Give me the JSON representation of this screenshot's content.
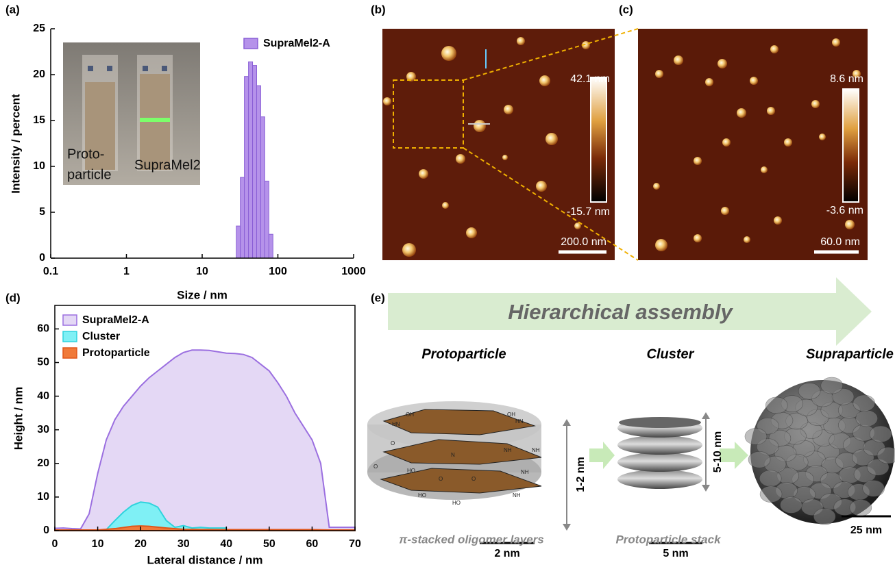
{
  "panel_labels": [
    "(a)",
    "(b)",
    "(c)",
    "(d)",
    "(e)"
  ],
  "chart_data": [
    {
      "type": "histogram",
      "x_label": "Size / nm",
      "y_label": "Intensity / percent",
      "log_x": true,
      "xlim": [
        0.1,
        1000
      ],
      "xticks": [
        0.1,
        1,
        10,
        100,
        1000
      ],
      "ylim": [
        0,
        25
      ],
      "yticks": [
        0,
        5,
        10,
        15,
        20,
        25
      ],
      "legend": "upper right",
      "series": [
        {
          "name": "SupraMel2-A",
          "color": "#b592ea",
          "edge": "#8a5fd6",
          "bins": [
            28.2,
            31.9,
            36.1,
            40.9,
            46.3,
            52.4,
            59.3,
            67.1,
            76.0,
            86.0
          ],
          "values": [
            3.5,
            8.8,
            19.8,
            21.4,
            21.0,
            18.8,
            15.4,
            8.4,
            2.6
          ]
        }
      ]
    },
    {
      "type": "area",
      "x_label": "Lateral distance / nm",
      "y_label": "Height / nm",
      "xlim": [
        0,
        70
      ],
      "xticks": [
        0,
        10,
        20,
        30,
        40,
        50,
        60,
        70
      ],
      "ylim": [
        0,
        67
      ],
      "yticks": [
        0,
        10,
        20,
        30,
        40,
        50,
        60
      ],
      "legend": "upper left",
      "series": [
        {
          "name": "SupraMel2-A",
          "color": "#e4d8f5",
          "edge": "#9b6fe0",
          "x": [
            0,
            2,
            4,
            6,
            8,
            10,
            12,
            14,
            16,
            18,
            20,
            22,
            24,
            26,
            28,
            30,
            32,
            34,
            36,
            38,
            40,
            42,
            44,
            46,
            48,
            50,
            52,
            54,
            56,
            58,
            60,
            62,
            64,
            66,
            68,
            70
          ],
          "values": [
            0.7,
            0.8,
            0.6,
            0.5,
            5,
            17,
            27,
            33,
            37,
            40,
            43,
            45.5,
            47.5,
            49.5,
            51.5,
            53,
            53.7,
            53.7,
            53.6,
            53.2,
            52.8,
            52.7,
            52.4,
            51.5,
            49.5,
            47.5,
            44,
            40,
            35,
            31,
            27,
            20,
            1,
            1,
            1,
            1
          ]
        },
        {
          "name": "Cluster",
          "color": "#7ff0f5",
          "edge": "#2fd3dd",
          "x": [
            12,
            14,
            16,
            18,
            20,
            22,
            24,
            26,
            28,
            30,
            32,
            34,
            36,
            38,
            40
          ],
          "values": [
            0.3,
            3,
            5.5,
            7.5,
            8.5,
            8.2,
            7,
            3,
            1,
            1.5,
            0.8,
            1,
            0.8,
            0.8,
            0.8
          ]
        },
        {
          "name": "Protoparticle",
          "color": "#f07a3a",
          "edge": "#e0561a",
          "x": [
            0,
            10,
            14,
            18,
            20,
            22,
            26,
            30,
            40,
            50,
            60,
            64,
            70
          ],
          "values": [
            0.2,
            0.2,
            0.6,
            1.3,
            1.4,
            1.3,
            0.8,
            0.4,
            0.3,
            0.3,
            0.3,
            0.2,
            0.2
          ]
        }
      ]
    }
  ],
  "inset": {
    "labels": [
      "Proto-",
      "particle",
      "SupraMel2"
    ]
  },
  "afm": [
    {
      "max": "42.1 nm",
      "min": "-15.7 nm",
      "scale": "200.0 nm"
    },
    {
      "max": "8.6 nm",
      "min": "-3.6 nm",
      "scale": "60.0 nm"
    }
  ],
  "schematic": {
    "arrow": "Hierarchical assembly",
    "stages": [
      {
        "title": "Protoparticle",
        "height": "1-2 nm",
        "scale": "2 nm",
        "caption": "π-stacked oligomer layers"
      },
      {
        "title": "Cluster",
        "height": "5-10 nm",
        "scale": "5 nm",
        "caption": "Protoparticle stack"
      },
      {
        "title": "Supraparticle",
        "scale": "25 nm"
      }
    ],
    "molecule_labels": [
      "OH",
      "HN",
      "OH",
      "HN",
      "O",
      "NH",
      "O",
      "N",
      "HO",
      "NH",
      "O",
      "HO",
      "NH",
      "HO",
      "O",
      "NH"
    ]
  }
}
